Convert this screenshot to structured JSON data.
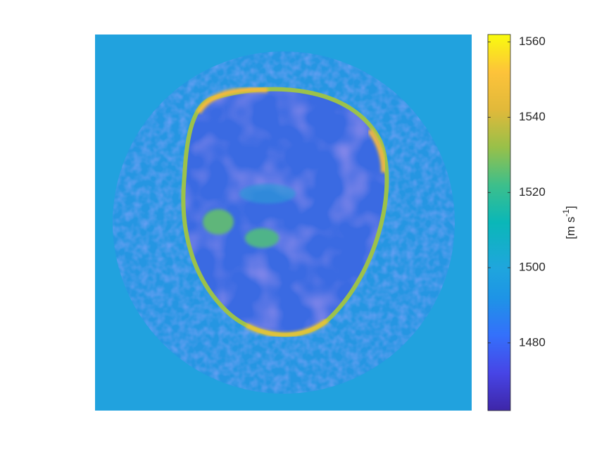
{
  "chart_data": {
    "type": "heatmap",
    "colormap": "parula",
    "clim": [
      1462,
      1562
    ],
    "cticks": [
      1480,
      1500,
      1520,
      1540,
      1560
    ],
    "colorbar_label": {
      "text": "[m s",
      "superscript": "-1",
      "suffix": "]"
    }
  }
}
